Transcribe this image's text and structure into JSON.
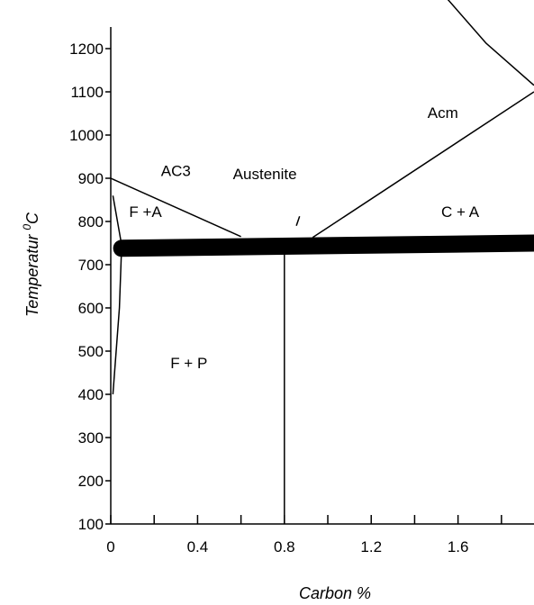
{
  "chart_data": {
    "type": "line",
    "title": "",
    "xlabel": "Carbon %",
    "ylabel": "Temperatur",
    "ylabel_superscript": "0",
    "ylabel_unit": "C",
    "xlim": [
      0,
      1.95
    ],
    "ylim": [
      100,
      1300
    ],
    "grid": false,
    "legend": "none",
    "x_ticks": [
      0,
      0.4,
      0.8,
      1.2,
      1.6
    ],
    "x_tick_labels": [
      "0",
      "0.4",
      "0.8",
      "1.2",
      "1.6"
    ],
    "x_minor_ticks": [
      0.2,
      0.6,
      1.0,
      1.4,
      1.8
    ],
    "y_ticks": [
      100,
      200,
      300,
      400,
      500,
      600,
      700,
      800,
      900,
      1000,
      1100,
      1200
    ],
    "y_tick_labels": [
      "100",
      "200",
      "300",
      "400",
      "500",
      "600",
      "700",
      "800",
      "900",
      "1000",
      "1100",
      "1200"
    ],
    "series": [
      {
        "key": "ac3",
        "color": "#000000",
        "width": "thin",
        "points": [
          [
            0,
            900
          ],
          [
            0.6,
            765
          ]
        ]
      },
      {
        "key": "acm",
        "color": "#000000",
        "width": "thin",
        "points": [
          [
            0.93,
            763
          ],
          [
            1.95,
            1100
          ]
        ]
      },
      {
        "key": "top-curve",
        "color": "#000000",
        "width": "thin",
        "points": [
          [
            1.42,
            1390
          ],
          [
            1.73,
            1212
          ],
          [
            1.95,
            1115
          ]
        ]
      },
      {
        "key": "eutectoid-vertical",
        "color": "#000000",
        "width": "thin",
        "points": [
          [
            0.8,
            100
          ],
          [
            0.8,
            728
          ]
        ]
      },
      {
        "key": "ferrite-solvus",
        "color": "#000000",
        "width": "thin",
        "points": [
          [
            0.01,
            860
          ],
          [
            0.05,
            745
          ],
          [
            0.04,
            600
          ],
          [
            0.01,
            400
          ]
        ]
      },
      {
        "key": "ac1-line",
        "color": "#000000",
        "width": "thick",
        "points": [
          [
            0.05,
            738
          ],
          [
            1.95,
            750
          ]
        ]
      },
      {
        "key": "small-tick",
        "color": "#000000",
        "width": "thin",
        "points": [
          [
            0.855,
            790
          ],
          [
            0.87,
            812
          ]
        ]
      }
    ],
    "regions": [
      {
        "label": "AC3",
        "x": 0.3,
        "y": 905
      },
      {
        "label": "Austenite",
        "x": 0.71,
        "y": 898
      },
      {
        "label": "F +A",
        "x": 0.16,
        "y": 810
      },
      {
        "label": "Acm",
        "x": 1.53,
        "y": 1040
      },
      {
        "label": "C + A",
        "x": 1.61,
        "y": 810
      },
      {
        "label": "F + P",
        "x": 0.36,
        "y": 460
      }
    ]
  }
}
